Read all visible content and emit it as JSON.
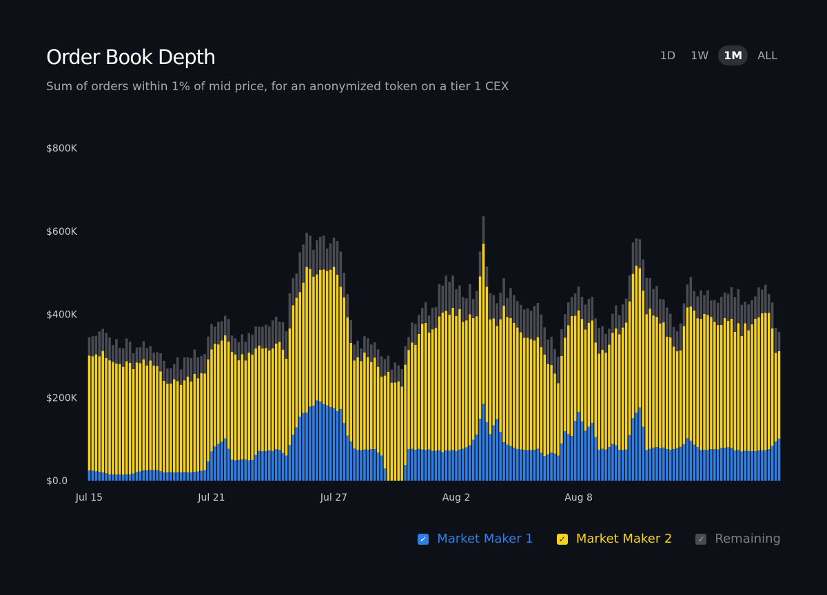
{
  "header": {
    "title": "Order Book Depth",
    "subtitle": "Sum of orders within 1% of mid price, for an anonymized token on a tier 1 CEX"
  },
  "range_selector": {
    "options": [
      "1D",
      "1W",
      "1M",
      "ALL"
    ],
    "selected": "1M"
  },
  "legend": {
    "items": [
      {
        "label": "Market Maker 1",
        "color": "#2f7fe6",
        "check": "✓"
      },
      {
        "label": "Market Maker 2",
        "color": "#f4d21f",
        "check": "✓"
      },
      {
        "label": "Remaining",
        "color": "#4a4b52",
        "check": "✓"
      }
    ]
  },
  "chart_data": {
    "type": "bar",
    "stacked": true,
    "title": "Order Book Depth",
    "y_tick_labels": [
      "$0.0",
      "$200K",
      "$400K",
      "$600K",
      "$800K"
    ],
    "y_ticks": [
      0,
      200000,
      400000,
      600000,
      800000
    ],
    "ylim": [
      0,
      800000
    ],
    "x_tick_labels": [
      "Jul 15",
      "Jul 21",
      "Jul 27",
      "Aug 2",
      "Aug 8"
    ],
    "x_tick_index": [
      0,
      36,
      72,
      108,
      144
    ],
    "series_colors": [
      "#2f7fe6",
      "#f4d21f",
      "#4a4b52"
    ],
    "series_names": [
      "Market Maker 1",
      "Market Maker 2",
      "Remaining"
    ],
    "anchors_mm1": [
      [
        0,
        25000
      ],
      [
        4,
        20000
      ],
      [
        6,
        15000
      ],
      [
        12,
        15000
      ],
      [
        14,
        20000
      ],
      [
        16,
        25000
      ],
      [
        20,
        25000
      ],
      [
        22,
        20000
      ],
      [
        30,
        20000
      ],
      [
        34,
        25000
      ],
      [
        36,
        70000
      ],
      [
        38,
        90000
      ],
      [
        40,
        100000
      ],
      [
        42,
        50000
      ],
      [
        48,
        50000
      ],
      [
        50,
        70000
      ],
      [
        56,
        75000
      ],
      [
        58,
        60000
      ],
      [
        60,
        110000
      ],
      [
        62,
        150000
      ],
      [
        66,
        185000
      ],
      [
        68,
        190000
      ],
      [
        70,
        180000
      ],
      [
        74,
        170000
      ],
      [
        76,
        110000
      ],
      [
        78,
        75000
      ],
      [
        84,
        75000
      ],
      [
        86,
        60000
      ],
      [
        88,
        0
      ],
      [
        92,
        0
      ],
      [
        94,
        75000
      ],
      [
        100,
        75000
      ],
      [
        104,
        70000
      ],
      [
        110,
        75000
      ],
      [
        112,
        85000
      ],
      [
        114,
        110000
      ],
      [
        116,
        180000
      ],
      [
        118,
        110000
      ],
      [
        120,
        150000
      ],
      [
        122,
        90000
      ],
      [
        126,
        75000
      ],
      [
        132,
        75000
      ],
      [
        134,
        60000
      ],
      [
        136,
        70000
      ],
      [
        138,
        60000
      ],
      [
        140,
        120000
      ],
      [
        142,
        110000
      ],
      [
        144,
        170000
      ],
      [
        146,
        120000
      ],
      [
        148,
        140000
      ],
      [
        150,
        75000
      ],
      [
        152,
        75000
      ],
      [
        154,
        90000
      ],
      [
        156,
        75000
      ],
      [
        158,
        75000
      ],
      [
        160,
        150000
      ],
      [
        162,
        180000
      ],
      [
        164,
        75000
      ],
      [
        168,
        80000
      ],
      [
        170,
        75000
      ],
      [
        174,
        80000
      ],
      [
        176,
        100000
      ],
      [
        180,
        75000
      ],
      [
        184,
        75000
      ],
      [
        188,
        80000
      ],
      [
        192,
        70000
      ],
      [
        196,
        70000
      ],
      [
        200,
        75000
      ],
      [
        203,
        100000
      ]
    ],
    "anchors_mm2": [
      [
        0,
        290000
      ],
      [
        4,
        280000
      ],
      [
        8,
        265000
      ],
      [
        12,
        260000
      ],
      [
        16,
        255000
      ],
      [
        20,
        250000
      ],
      [
        22,
        230000
      ],
      [
        24,
        215000
      ],
      [
        28,
        220000
      ],
      [
        30,
        230000
      ],
      [
        34,
        240000
      ],
      [
        38,
        240000
      ],
      [
        40,
        250000
      ],
      [
        42,
        270000
      ],
      [
        44,
        240000
      ],
      [
        48,
        250000
      ],
      [
        52,
        250000
      ],
      [
        56,
        250000
      ],
      [
        58,
        240000
      ],
      [
        60,
        300000
      ],
      [
        62,
        300000
      ],
      [
        64,
        340000
      ],
      [
        66,
        310000
      ],
      [
        68,
        310000
      ],
      [
        70,
        320000
      ],
      [
        72,
        330000
      ],
      [
        74,
        300000
      ],
      [
        76,
        280000
      ],
      [
        78,
        210000
      ],
      [
        82,
        230000
      ],
      [
        84,
        210000
      ],
      [
        86,
        190000
      ],
      [
        88,
        250000
      ],
      [
        90,
        230000
      ],
      [
        94,
        240000
      ],
      [
        98,
        290000
      ],
      [
        102,
        300000
      ],
      [
        104,
        320000
      ],
      [
        108,
        330000
      ],
      [
        110,
        320000
      ],
      [
        114,
        290000
      ],
      [
        116,
        400000
      ],
      [
        118,
        280000
      ],
      [
        120,
        220000
      ],
      [
        122,
        320000
      ],
      [
        126,
        290000
      ],
      [
        130,
        270000
      ],
      [
        132,
        280000
      ],
      [
        134,
        240000
      ],
      [
        136,
        210000
      ],
      [
        138,
        180000
      ],
      [
        140,
        230000
      ],
      [
        142,
        290000
      ],
      [
        144,
        240000
      ],
      [
        146,
        250000
      ],
      [
        148,
        240000
      ],
      [
        150,
        230000
      ],
      [
        152,
        240000
      ],
      [
        154,
        260000
      ],
      [
        156,
        280000
      ],
      [
        158,
        300000
      ],
      [
        160,
        340000
      ],
      [
        162,
        340000
      ],
      [
        164,
        330000
      ],
      [
        166,
        320000
      ],
      [
        168,
        310000
      ],
      [
        170,
        280000
      ],
      [
        172,
        240000
      ],
      [
        174,
        230000
      ],
      [
        176,
        320000
      ],
      [
        180,
        320000
      ],
      [
        184,
        300000
      ],
      [
        188,
        310000
      ],
      [
        192,
        290000
      ],
      [
        196,
        320000
      ],
      [
        200,
        320000
      ],
      [
        202,
        220000
      ],
      [
        203,
        220000
      ]
    ],
    "anchors_rem": [
      [
        0,
        50000
      ],
      [
        10,
        50000
      ],
      [
        20,
        40000
      ],
      [
        30,
        50000
      ],
      [
        40,
        50000
      ],
      [
        50,
        50000
      ],
      [
        56,
        60000
      ],
      [
        60,
        70000
      ],
      [
        62,
        80000
      ],
      [
        64,
        70000
      ],
      [
        70,
        70000
      ],
      [
        74,
        70000
      ],
      [
        78,
        40000
      ],
      [
        84,
        40000
      ],
      [
        88,
        40000
      ],
      [
        92,
        40000
      ],
      [
        96,
        40000
      ],
      [
        102,
        60000
      ],
      [
        106,
        80000
      ],
      [
        110,
        60000
      ],
      [
        114,
        60000
      ],
      [
        116,
        60000
      ],
      [
        120,
        60000
      ],
      [
        124,
        60000
      ],
      [
        128,
        60000
      ],
      [
        132,
        70000
      ],
      [
        136,
        60000
      ],
      [
        140,
        50000
      ],
      [
        144,
        50000
      ],
      [
        150,
        50000
      ],
      [
        154,
        50000
      ],
      [
        158,
        50000
      ],
      [
        160,
        80000
      ],
      [
        164,
        70000
      ],
      [
        168,
        70000
      ],
      [
        172,
        50000
      ],
      [
        176,
        60000
      ],
      [
        180,
        60000
      ],
      [
        184,
        50000
      ],
      [
        188,
        70000
      ],
      [
        192,
        70000
      ],
      [
        196,
        60000
      ],
      [
        200,
        60000
      ],
      [
        203,
        60000
      ]
    ]
  }
}
